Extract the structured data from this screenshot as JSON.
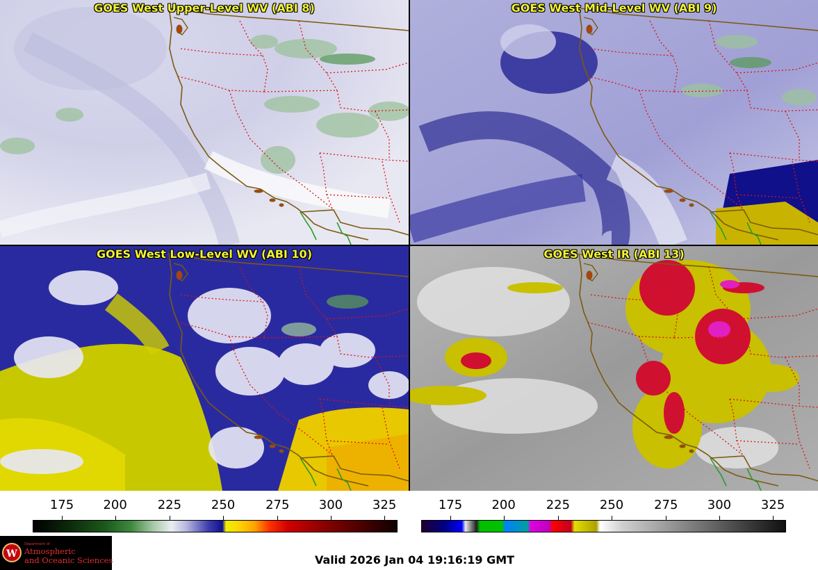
{
  "panels": [
    {
      "title": "GOES West Upper-Level WV (ABI 8)"
    },
    {
      "title": "GOES West Mid-Level WV (ABI 9)"
    },
    {
      "title": "GOES West Low-Level WV (ABI 10)"
    },
    {
      "title": "GOES West IR (ABI 13)"
    }
  ],
  "colorbars": {
    "left": {
      "ticks": [
        "175",
        "200",
        "225",
        "250",
        "275",
        "300",
        "325"
      ]
    },
    "right": {
      "ticks": [
        "175",
        "200",
        "225",
        "250",
        "275",
        "300",
        "325"
      ]
    }
  },
  "logo": {
    "small": "Department of",
    "line1": "Atmospheric",
    "line2": "and Oceanic Sciences"
  },
  "valid_time": "Valid 2026 Jan 04 19:16:19 GMT",
  "colors": {
    "coast": "#7a5a10",
    "state_borders": "#dd1111",
    "title_text": "#f2f233",
    "logo_text": "#e03030"
  }
}
